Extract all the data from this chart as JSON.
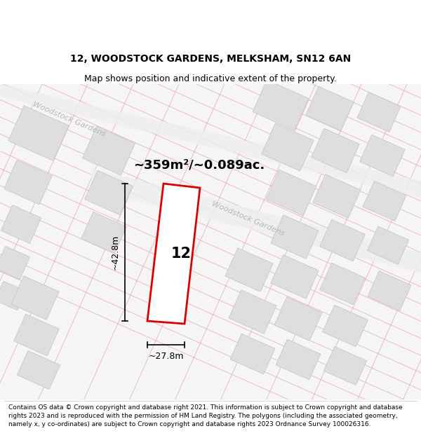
{
  "title": "12, WOODSTOCK GARDENS, MELKSHAM, SN12 6AN",
  "subtitle": "Map shows position and indicative extent of the property.",
  "area_text": "~359m²/~0.089ac.",
  "dim_width": "~27.8m",
  "dim_height": "~42.8m",
  "plot_label": "12",
  "road_label_1": "Woodstock Gardens",
  "road_label_2": "Woodstock Gardens",
  "footer": "Contains OS data © Crown copyright and database right 2021. This information is subject to Crown copyright and database rights 2023 and is reproduced with the permission of HM Land Registry. The polygons (including the associated geometry, namely x, y co-ordinates) are subject to Crown copyright and database rights 2023 Ordnance Survey 100026316.",
  "map_bg": "#f8f8f8",
  "building_fill": "#dedede",
  "building_edge": "#c8c8c8",
  "plot_edge_color": "#dd0000",
  "plot_fill": "#ffffff",
  "faint_line_color": "#f0a0a0",
  "road_line_color": "#e8e8e8",
  "title_fontsize": 10,
  "subtitle_fontsize": 9,
  "area_fontsize": 13,
  "dim_fontsize": 9,
  "footer_fontsize": 6.5,
  "road_text_color": "#b8b8b8",
  "road_text_size": 8
}
